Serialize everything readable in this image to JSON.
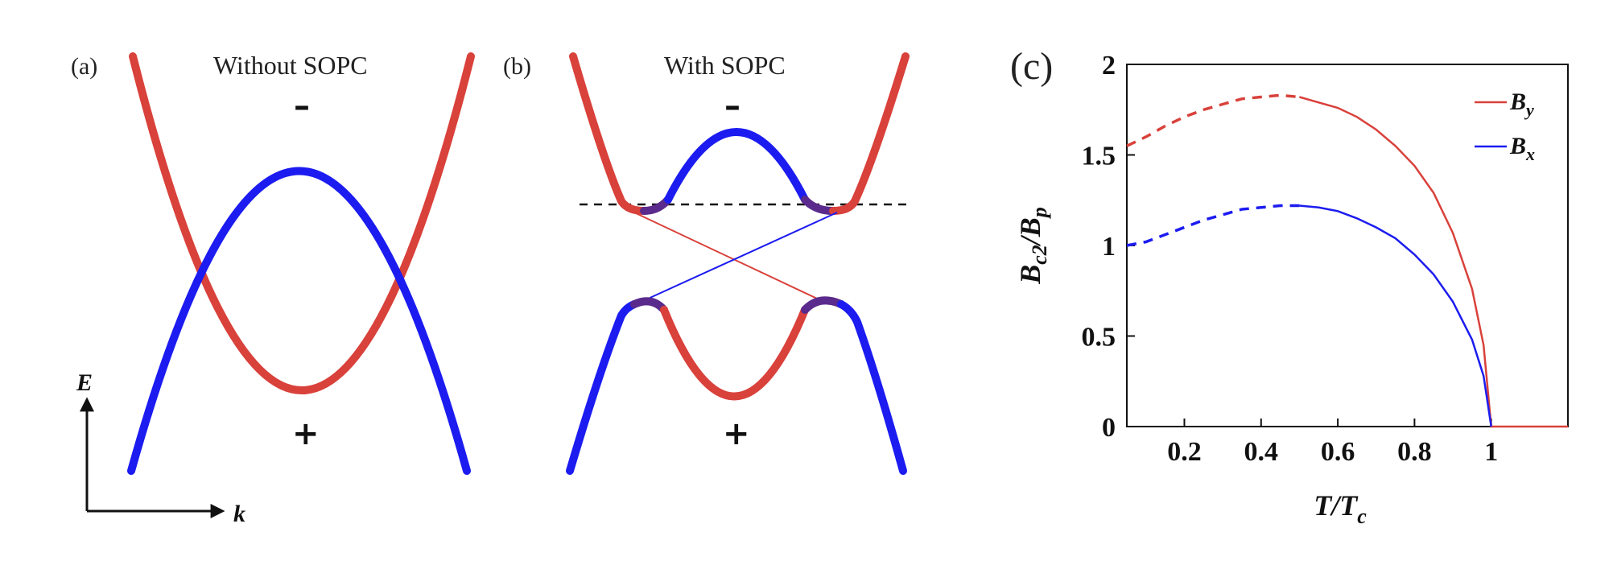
{
  "colors": {
    "red": "#d9413b",
    "blue": "#1c1cf0",
    "purple": "#5a2a8c",
    "text": "#111111"
  },
  "panel_a": {
    "label": "(a)",
    "title": "Without SOPC",
    "upper_sign": "–",
    "lower_sign": "+",
    "energy_axis": "E",
    "momentum_axis": "k"
  },
  "panel_b": {
    "label": "(b)",
    "title": "With SOPC",
    "upper_sign": "–",
    "lower_sign": "+"
  },
  "chart_data": [
    {
      "panel": "(c)",
      "type": "line",
      "title": "",
      "xlabel": "T/T_c",
      "ylabel": "B_c2/B_p",
      "xlim": [
        0.05,
        1.2
      ],
      "ylim": [
        0,
        2
      ],
      "xticks": [
        0.2,
        0.4,
        0.6,
        0.8,
        1
      ],
      "xtick_labels": [
        "0.2",
        "0.4",
        "0.6",
        "0.8",
        "1"
      ],
      "yticks": [
        0,
        0.5,
        1,
        1.5,
        2
      ],
      "ytick_labels": [
        "0",
        "0.5",
        "1",
        "1.5",
        "2"
      ],
      "legend_position": "top-right",
      "series": [
        {
          "name": "B_y",
          "color": "#d9413b",
          "dashed": {
            "x": [
              0.05,
              0.1,
              0.15,
              0.2,
              0.25,
              0.3,
              0.35,
              0.4,
              0.45,
              0.5
            ],
            "y": [
              1.55,
              1.6,
              1.66,
              1.71,
              1.75,
              1.78,
              1.81,
              1.82,
              1.83,
              1.82
            ]
          },
          "solid": {
            "x": [
              0.5,
              0.55,
              0.6,
              0.65,
              0.7,
              0.75,
              0.8,
              0.85,
              0.9,
              0.95,
              0.98,
              1.0,
              1.05,
              1.1,
              1.15,
              1.2
            ],
            "y": [
              1.82,
              1.79,
              1.76,
              1.71,
              1.64,
              1.55,
              1.44,
              1.29,
              1.07,
              0.76,
              0.45,
              0,
              0,
              0,
              0,
              0
            ]
          }
        },
        {
          "name": "B_x",
          "color": "#1c1cf0",
          "dashed": {
            "x": [
              0.05,
              0.1,
              0.15,
              0.2,
              0.25,
              0.3,
              0.35,
              0.4,
              0.45,
              0.5
            ],
            "y": [
              1.0,
              1.02,
              1.06,
              1.1,
              1.14,
              1.17,
              1.2,
              1.21,
              1.22,
              1.22
            ]
          },
          "solid": {
            "x": [
              0.5,
              0.55,
              0.6,
              0.65,
              0.7,
              0.75,
              0.8,
              0.85,
              0.9,
              0.95,
              0.98,
              1.0
            ],
            "y": [
              1.22,
              1.21,
              1.19,
              1.15,
              1.1,
              1.04,
              0.95,
              0.84,
              0.69,
              0.48,
              0.28,
              0
            ]
          }
        }
      ]
    }
  ],
  "chart_c_text": {
    "label": "(c)",
    "xlabel_main": "T/T",
    "xlabel_sub": "c",
    "ylabel_main_1": "B",
    "ylabel_sub_1": "c2",
    "ylabel_main_2": "/B",
    "ylabel_sub_2": "p",
    "legend_1_main": "B",
    "legend_1_sub": "y",
    "legend_2_main": "B",
    "legend_2_sub": "x"
  }
}
